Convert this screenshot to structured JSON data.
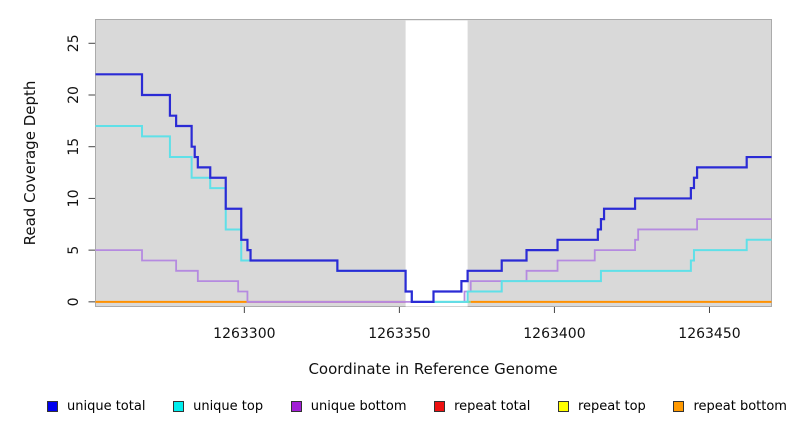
{
  "figure": {
    "background": "#ffffff",
    "plot_background": "#d9d9d9",
    "frame_color": "#ababab",
    "tick_color": "#444444",
    "text_color": "#111111",
    "gap_band": {
      "from": 1263352,
      "to": 1263372,
      "color": "#ffffff"
    }
  },
  "chart_data": {
    "type": "line",
    "subtype": "step-coverage",
    "title": "",
    "xlabel": "Coordinate in Reference Genome",
    "ylabel": "Read Coverage Depth",
    "grid": "off",
    "legend_position": "bottom",
    "x_range": [
      1263252,
      1263470
    ],
    "y_range": [
      -0.45,
      27.3
    ],
    "x_ticks": [
      1263300,
      1263350,
      1263400,
      1263450
    ],
    "y_ticks": [
      0,
      5,
      10,
      15,
      20,
      25
    ],
    "series": [
      {
        "name": "unique total",
        "legend_color": "#0000ee",
        "line_color": "#2b2bd5",
        "width": 2.2,
        "draw": "steps",
        "points": [
          [
            1263252,
            22
          ],
          [
            1263267,
            20
          ],
          [
            1263276,
            18
          ],
          [
            1263278,
            17
          ],
          [
            1263283,
            15
          ],
          [
            1263284,
            14
          ],
          [
            1263285,
            13
          ],
          [
            1263289,
            12
          ],
          [
            1263294,
            9
          ],
          [
            1263299,
            6
          ],
          [
            1263301,
            5
          ],
          [
            1263302,
            4
          ],
          [
            1263330,
            3
          ],
          [
            1263352,
            1
          ],
          [
            1263354,
            0
          ],
          [
            1263361,
            1
          ],
          [
            1263370,
            2
          ],
          [
            1263372,
            3
          ],
          [
            1263383,
            4
          ],
          [
            1263391,
            5
          ],
          [
            1263401,
            6
          ],
          [
            1263414,
            7
          ],
          [
            1263415,
            8
          ],
          [
            1263416,
            9
          ],
          [
            1263426,
            10
          ],
          [
            1263444,
            11
          ],
          [
            1263445,
            12
          ],
          [
            1263446,
            13
          ],
          [
            1263462,
            14
          ]
        ]
      },
      {
        "name": "unique top",
        "legend_color": "#00eeee",
        "line_color": "#5fe0e8",
        "width": 2.0,
        "draw": "steps",
        "points": [
          [
            1263252,
            17
          ],
          [
            1263267,
            16
          ],
          [
            1263276,
            14
          ],
          [
            1263283,
            12
          ],
          [
            1263289,
            11
          ],
          [
            1263294,
            7
          ],
          [
            1263299,
            4
          ],
          [
            1263330,
            3
          ],
          [
            1263352,
            1
          ],
          [
            1263354,
            0
          ],
          [
            1263372,
            1
          ],
          [
            1263383,
            2
          ],
          [
            1263415,
            3
          ],
          [
            1263444,
            4
          ],
          [
            1263445,
            5
          ],
          [
            1263462,
            6
          ]
        ]
      },
      {
        "name": "unique bottom",
        "legend_color": "#a21fd6",
        "line_color": "#b58ae0",
        "width": 1.8,
        "draw": "steps",
        "points": [
          [
            1263252,
            5
          ],
          [
            1263267,
            4
          ],
          [
            1263278,
            3
          ],
          [
            1263285,
            2
          ],
          [
            1263298,
            1
          ],
          [
            1263301,
            0
          ],
          [
            1263371,
            1
          ],
          [
            1263373,
            2
          ],
          [
            1263391,
            3
          ],
          [
            1263401,
            4
          ],
          [
            1263413,
            5
          ],
          [
            1263426,
            6
          ],
          [
            1263427,
            7
          ],
          [
            1263446,
            8
          ]
        ]
      },
      {
        "name": "repeat total",
        "legend_color": "#ee1111",
        "line_color": "#d4647f",
        "width": 2.0,
        "draw": "zero",
        "points": [
          [
            1263252,
            0
          ]
        ]
      },
      {
        "name": "repeat top",
        "legend_color": "#ffff00",
        "line_color": "#ffff00",
        "width": 2.0,
        "draw": "zero",
        "points": [
          [
            1263252,
            0
          ]
        ]
      },
      {
        "name": "repeat bottom",
        "legend_color": "#ff9900",
        "line_color": "#ff9100",
        "width": 2.0,
        "draw": "zero",
        "points": [
          [
            1263252,
            0
          ]
        ]
      }
    ],
    "zero_line_segments": [
      {
        "from": 1263252,
        "to": 1263301,
        "color": "#ff9100"
      },
      {
        "from": 1263301,
        "to": 1263352,
        "color": "#d4647f"
      },
      {
        "from": 1263361,
        "to": 1263373,
        "color": "#7fd98f"
      },
      {
        "from": 1263373,
        "to": 1263470,
        "color": "#ff9100"
      }
    ]
  },
  "legend": {
    "items": [
      {
        "label": "unique total",
        "color": "#0000ee"
      },
      {
        "label": "unique top",
        "color": "#00eeee"
      },
      {
        "label": "unique bottom",
        "color": "#a21fd6"
      },
      {
        "label": "repeat total",
        "color": "#ee1111"
      },
      {
        "label": "repeat top",
        "color": "#ffff00"
      },
      {
        "label": "repeat bottom",
        "color": "#ff9900"
      }
    ]
  }
}
